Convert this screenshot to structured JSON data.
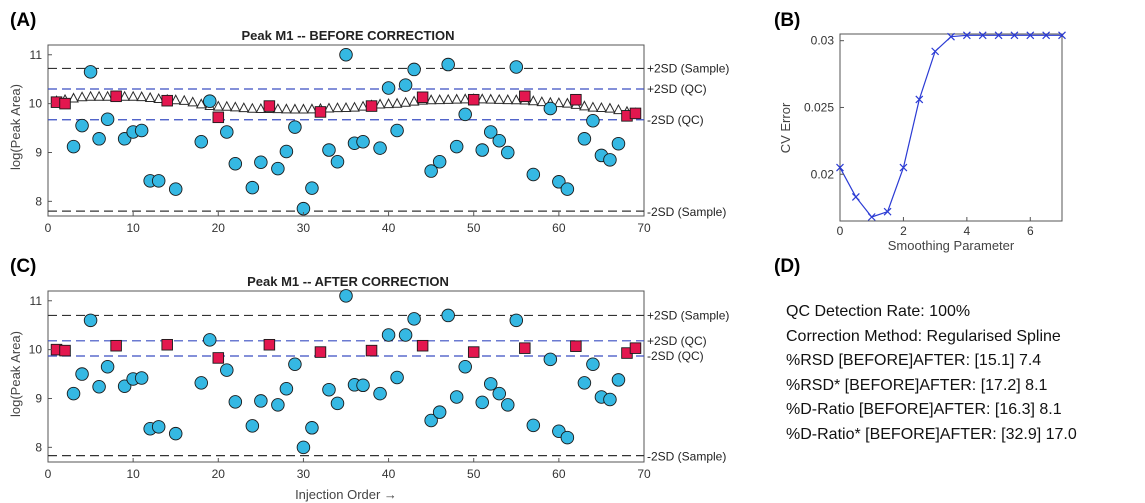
{
  "chart_data": [
    {
      "panel": "(A)",
      "type": "scatter",
      "title": "Peak M1 -- BEFORE CORRECTION",
      "xlabel": "",
      "ylabel": "log(Peak Area)",
      "xlim": [
        0,
        70
      ],
      "ylim": [
        7.7,
        11.2
      ],
      "xticks": [
        "0",
        "10",
        "20",
        "30",
        "40",
        "50",
        "60",
        "70"
      ],
      "yticks": [
        "8",
        "9",
        "10",
        "11"
      ],
      "reference_lines": [
        {
          "label": "+2SD (Sample)",
          "y": 10.72,
          "color": "#333333"
        },
        {
          "label": "+2SD (QC)",
          "y": 10.3,
          "color": "#3a4ec2"
        },
        {
          "label": "-2SD (QC)",
          "y": 9.67,
          "color": "#3a4ec2"
        },
        {
          "label": "-2SD (Sample)",
          "y": 7.8,
          "color": "#333333"
        }
      ],
      "samples": {
        "x": [
          3,
          4,
          5,
          6,
          7,
          9,
          10,
          11,
          12,
          13,
          15,
          18,
          19,
          21,
          22,
          24,
          25,
          27,
          28,
          29,
          30,
          31,
          33,
          34,
          35,
          36,
          37,
          39,
          40,
          41,
          42,
          43,
          45,
          46,
          47,
          48,
          49,
          51,
          52,
          53,
          54,
          55,
          57,
          59,
          60,
          61,
          63,
          64,
          65,
          66,
          67
        ],
        "y": [
          9.12,
          9.55,
          10.65,
          9.28,
          9.68,
          9.28,
          9.42,
          9.45,
          8.42,
          8.42,
          8.25,
          9.22,
          10.05,
          9.42,
          8.77,
          8.28,
          8.8,
          8.67,
          9.02,
          9.52,
          7.85,
          8.27,
          9.05,
          8.81,
          11.0,
          9.19,
          9.22,
          9.09,
          10.32,
          9.45,
          10.38,
          10.7,
          8.62,
          8.81,
          10.8,
          9.12,
          9.78,
          9.05,
          9.42,
          9.24,
          9.0,
          10.75,
          8.55,
          9.9,
          8.4,
          8.25,
          9.28,
          9.65,
          8.94,
          8.85,
          9.18
        ]
      },
      "qc": {
        "x": [
          1,
          2,
          8,
          14,
          20,
          26,
          32,
          38,
          44,
          50,
          56,
          62,
          68,
          69
        ],
        "y": [
          10.03,
          10.0,
          10.15,
          10.06,
          9.72,
          9.95,
          9.83,
          9.95,
          10.13,
          10.08,
          10.15,
          10.08,
          9.75,
          9.8
        ]
      },
      "correction_curve": {
        "x": [
          0,
          5,
          10,
          15,
          20,
          25,
          30,
          35,
          40,
          45,
          50,
          55,
          60,
          65,
          70
        ],
        "y": [
          10.05,
          10.15,
          10.15,
          10.08,
          9.95,
          9.9,
          9.89,
          9.92,
          10.0,
          10.08,
          10.1,
          10.08,
          10.02,
          9.92,
          9.8
        ]
      },
      "marker_colors": {
        "sample": "#35b8e3",
        "qc": "#e3174f",
        "curve": "#2a2a2a"
      }
    },
    {
      "panel": "(B)",
      "type": "line",
      "title": "",
      "xlabel": "Smoothing Parameter",
      "ylabel": "CV Error",
      "xlim": [
        0,
        7
      ],
      "ylim": [
        0.0165,
        0.0305
      ],
      "xticks": [
        "0",
        "2",
        "4",
        "6"
      ],
      "yticks": [
        "0.02",
        "0.025",
        "0.03"
      ],
      "x": [
        0,
        0.5,
        1,
        1.5,
        2,
        2.5,
        3,
        3.5,
        4,
        4.5,
        5,
        5.5,
        6,
        6.5,
        7
      ],
      "y": [
        0.0205,
        0.0183,
        0.0168,
        0.0172,
        0.0205,
        0.0256,
        0.0292,
        0.0303,
        0.0304,
        0.0304,
        0.0304,
        0.0304,
        0.0304,
        0.0304,
        0.0304
      ],
      "color": "#2b3bd4"
    },
    {
      "panel": "(C)",
      "type": "scatter",
      "title": "Peak M1 -- AFTER CORRECTION",
      "xlabel": "Injection Order →",
      "ylabel": "log(Peak Area)",
      "xlim": [
        0,
        70
      ],
      "ylim": [
        7.7,
        11.2
      ],
      "xticks": [
        "0",
        "10",
        "20",
        "30",
        "40",
        "50",
        "60",
        "70"
      ],
      "yticks": [
        "8",
        "9",
        "10",
        "11"
      ],
      "reference_lines": [
        {
          "label": "+2SD (Sample)",
          "y": 10.7,
          "color": "#333333"
        },
        {
          "label": "+2SD (QC)",
          "y": 10.18,
          "color": "#3a4ec2"
        },
        {
          "label": "-2SD (QC)",
          "y": 9.87,
          "color": "#3a4ec2"
        },
        {
          "label": "-2SD (Sample)",
          "y": 7.83,
          "color": "#333333"
        }
      ],
      "samples": {
        "x": [
          3,
          4,
          5,
          6,
          7,
          9,
          10,
          11,
          12,
          13,
          15,
          18,
          19,
          21,
          22,
          24,
          25,
          27,
          28,
          29,
          30,
          31,
          33,
          34,
          35,
          36,
          37,
          39,
          40,
          41,
          42,
          43,
          45,
          46,
          47,
          48,
          49,
          51,
          52,
          53,
          54,
          55,
          57,
          59,
          60,
          61,
          63,
          64,
          65,
          66,
          67
        ],
        "y": [
          9.1,
          9.5,
          10.6,
          9.24,
          9.65,
          9.25,
          9.4,
          9.42,
          8.38,
          8.42,
          8.28,
          9.32,
          10.2,
          9.58,
          8.93,
          8.44,
          8.95,
          8.87,
          9.2,
          9.7,
          8.0,
          8.4,
          9.18,
          8.9,
          11.1,
          9.28,
          9.27,
          9.1,
          10.3,
          9.43,
          10.3,
          10.63,
          8.55,
          8.72,
          10.7,
          9.03,
          9.65,
          8.92,
          9.3,
          9.1,
          8.87,
          10.6,
          8.45,
          9.8,
          8.33,
          8.2,
          9.32,
          9.7,
          9.03,
          8.98,
          9.38
        ]
      },
      "qc": {
        "x": [
          1,
          2,
          8,
          14,
          20,
          26,
          32,
          38,
          44,
          50,
          56,
          62,
          68,
          69
        ],
        "y": [
          10.0,
          9.98,
          10.08,
          10.1,
          9.83,
          10.1,
          9.95,
          9.98,
          10.08,
          9.95,
          10.03,
          10.07,
          9.93,
          10.03
        ]
      },
      "marker_colors": {
        "sample": "#35b8e3",
        "qc": "#e3174f"
      }
    }
  ],
  "panel_d": {
    "label": "(D)",
    "lines": [
      "QC Detection Rate: 100%",
      "Correction Method: Regularised Spline",
      "%RSD [BEFORE]AFTER: [15.1] 7.4",
      "%RSD* [BEFORE]AFTER: [17.2] 8.1",
      "%D-Ratio [BEFORE]AFTER: [16.3] 8.1",
      "%D-Ratio* [BEFORE]AFTER: [32.9] 17.0"
    ]
  }
}
